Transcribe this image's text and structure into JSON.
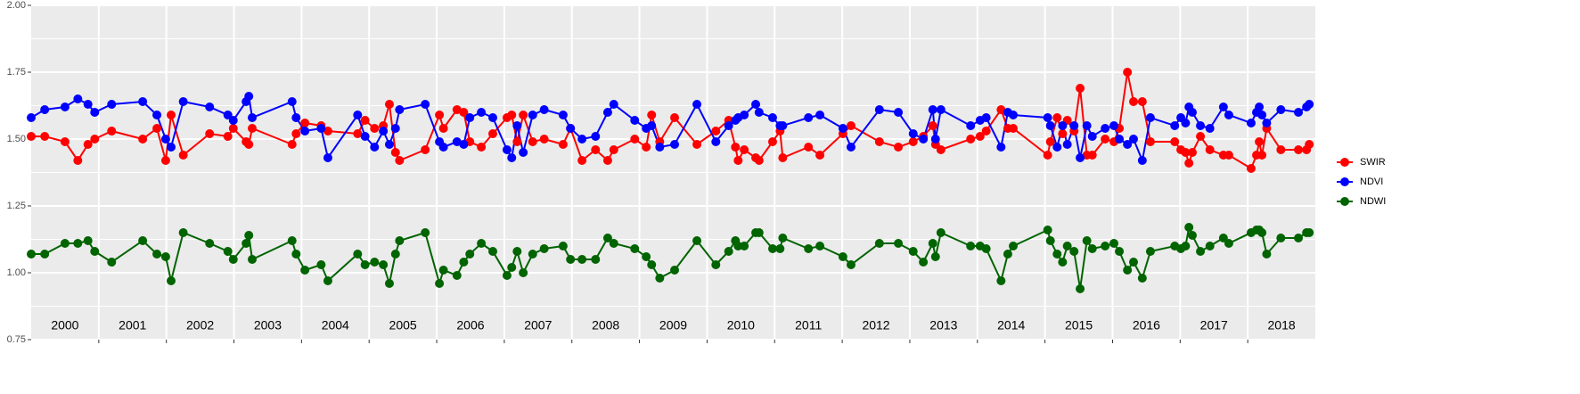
{
  "chart_data": {
    "type": "line",
    "x": [
      2000.0,
      2000.2,
      2000.5,
      2000.69,
      2000.84,
      2000.94,
      2001.19,
      2001.65,
      2001.86,
      2001.99,
      2002.07,
      2002.25,
      2002.64,
      2002.91,
      2002.99,
      2003.18,
      2003.22,
      2003.27,
      2003.86,
      2003.92,
      2004.05,
      2004.29,
      2004.39,
      2004.83,
      2004.94,
      2005.08,
      2005.21,
      2005.3,
      2005.39,
      2005.45,
      2005.83,
      2006.04,
      2006.1,
      2006.3,
      2006.4,
      2006.49,
      2006.66,
      2006.83,
      2007.04,
      2007.11,
      2007.19,
      2007.28,
      2007.42,
      2007.59,
      2007.87,
      2007.98,
      2008.15,
      2008.35,
      2008.53,
      2008.62,
      2008.93,
      2009.1,
      2009.18,
      2009.3,
      2009.52,
      2009.85,
      2010.13,
      2010.32,
      2010.42,
      2010.46,
      2010.55,
      2010.72,
      2010.77,
      2010.97,
      2011.08,
      2011.12,
      2011.5,
      2011.67,
      2012.01,
      2012.13,
      2012.55,
      2012.83,
      2013.05,
      2013.2,
      2013.34,
      2013.38,
      2013.46,
      2013.9,
      2014.04,
      2014.13,
      2014.35,
      2014.45,
      2014.53,
      2015.04,
      2015.08,
      2015.18,
      2015.26,
      2015.33,
      2015.43,
      2015.52,
      2015.62,
      2015.7,
      2015.89,
      2016.02,
      2016.1,
      2016.22,
      2016.31,
      2016.44,
      2016.56,
      2016.92,
      2017.01,
      2017.08,
      2017.13,
      2017.18,
      2017.3,
      2017.44,
      2017.64,
      2017.72,
      2018.05,
      2018.13,
      2018.17,
      2018.21,
      2018.28,
      2018.49,
      2018.75,
      2018.87,
      2018.91
    ],
    "series": [
      {
        "name": "SWIR",
        "color": "#ff0000",
        "values": [
          1.51,
          1.51,
          1.49,
          1.42,
          1.48,
          1.5,
          1.53,
          1.5,
          1.54,
          1.42,
          1.59,
          1.44,
          1.52,
          1.51,
          1.54,
          1.49,
          1.48,
          1.54,
          1.48,
          1.52,
          1.56,
          1.55,
          1.53,
          1.52,
          1.57,
          1.54,
          1.55,
          1.63,
          1.45,
          1.42,
          1.46,
          1.59,
          1.54,
          1.61,
          1.6,
          1.49,
          1.47,
          1.52,
          1.58,
          1.59,
          1.49,
          1.59,
          1.49,
          1.5,
          1.48,
          1.54,
          1.42,
          1.46,
          1.42,
          1.46,
          1.5,
          1.47,
          1.59,
          1.49,
          1.58,
          1.48,
          1.53,
          1.57,
          1.47,
          1.42,
          1.46,
          1.43,
          1.42,
          1.49,
          1.53,
          1.43,
          1.47,
          1.44,
          1.52,
          1.55,
          1.49,
          1.47,
          1.49,
          1.51,
          1.55,
          1.48,
          1.46,
          1.5,
          1.51,
          1.53,
          1.61,
          1.54,
          1.54,
          1.44,
          1.49,
          1.58,
          1.52,
          1.57,
          1.53,
          1.69,
          1.44,
          1.44,
          1.5,
          1.49,
          1.54,
          1.75,
          1.64,
          1.64,
          1.49,
          1.49,
          1.46,
          1.45,
          1.41,
          1.45,
          1.51,
          1.46,
          1.44,
          1.44,
          1.39,
          1.44,
          1.49,
          1.44,
          1.54,
          1.46,
          1.46,
          1.46,
          1.48
        ]
      },
      {
        "name": "NDVI",
        "color": "#0000ff",
        "values": [
          1.58,
          1.61,
          1.62,
          1.65,
          1.63,
          1.6,
          1.63,
          1.64,
          1.59,
          1.5,
          1.47,
          1.64,
          1.62,
          1.59,
          1.57,
          1.64,
          1.66,
          1.58,
          1.64,
          1.58,
          1.53,
          1.54,
          1.43,
          1.59,
          1.51,
          1.47,
          1.53,
          1.48,
          1.54,
          1.61,
          1.63,
          1.49,
          1.47,
          1.49,
          1.48,
          1.58,
          1.6,
          1.58,
          1.46,
          1.43,
          1.55,
          1.45,
          1.59,
          1.61,
          1.59,
          1.54,
          1.5,
          1.51,
          1.6,
          1.63,
          1.57,
          1.54,
          1.55,
          1.47,
          1.48,
          1.63,
          1.49,
          1.55,
          1.57,
          1.58,
          1.59,
          1.63,
          1.6,
          1.58,
          1.55,
          1.55,
          1.58,
          1.59,
          1.54,
          1.47,
          1.61,
          1.6,
          1.52,
          1.5,
          1.61,
          1.5,
          1.61,
          1.55,
          1.57,
          1.58,
          1.47,
          1.6,
          1.59,
          1.58,
          1.55,
          1.47,
          1.55,
          1.48,
          1.55,
          1.43,
          1.55,
          1.51,
          1.54,
          1.55,
          1.5,
          1.48,
          1.5,
          1.42,
          1.58,
          1.55,
          1.58,
          1.56,
          1.62,
          1.6,
          1.55,
          1.54,
          1.62,
          1.59,
          1.56,
          1.6,
          1.62,
          1.59,
          1.56,
          1.61,
          1.6,
          1.62,
          1.63
        ]
      },
      {
        "name": "NDWI",
        "color": "#006400",
        "values": [
          1.07,
          1.07,
          1.11,
          1.11,
          1.12,
          1.08,
          1.04,
          1.12,
          1.07,
          1.06,
          0.97,
          1.15,
          1.11,
          1.08,
          1.05,
          1.11,
          1.14,
          1.05,
          1.12,
          1.07,
          1.01,
          1.03,
          0.97,
          1.07,
          1.03,
          1.04,
          1.03,
          0.96,
          1.07,
          1.12,
          1.15,
          0.96,
          1.01,
          0.99,
          1.04,
          1.07,
          1.11,
          1.08,
          0.99,
          1.02,
          1.08,
          1.0,
          1.07,
          1.09,
          1.1,
          1.05,
          1.05,
          1.05,
          1.13,
          1.11,
          1.09,
          1.06,
          1.03,
          0.98,
          1.01,
          1.12,
          1.03,
          1.08,
          1.12,
          1.1,
          1.1,
          1.15,
          1.15,
          1.09,
          1.09,
          1.13,
          1.09,
          1.1,
          1.06,
          1.03,
          1.11,
          1.11,
          1.08,
          1.04,
          1.11,
          1.06,
          1.15,
          1.1,
          1.1,
          1.09,
          0.97,
          1.07,
          1.1,
          1.16,
          1.12,
          1.07,
          1.04,
          1.1,
          1.08,
          0.94,
          1.12,
          1.09,
          1.1,
          1.11,
          1.08,
          1.01,
          1.04,
          0.98,
          1.08,
          1.1,
          1.09,
          1.1,
          1.17,
          1.14,
          1.08,
          1.1,
          1.13,
          1.11,
          1.15,
          1.16,
          1.16,
          1.15,
          1.07,
          1.13,
          1.13,
          1.15,
          1.15
        ]
      }
    ],
    "xlim": [
      2000,
      2019
    ],
    "xticks": [
      2001,
      2002,
      2003,
      2004,
      2005,
      2006,
      2007,
      2008,
      2009,
      2010,
      2011,
      2012,
      2013,
      2014,
      2015,
      2016,
      2017,
      2018
    ],
    "year_labels": [
      {
        "value": 2000.5,
        "label": "2000"
      },
      {
        "value": 2001.5,
        "label": "2001"
      },
      {
        "value": 2002.5,
        "label": "2002"
      },
      {
        "value": 2003.5,
        "label": "2003"
      },
      {
        "value": 2004.5,
        "label": "2004"
      },
      {
        "value": 2005.5,
        "label": "2005"
      },
      {
        "value": 2006.5,
        "label": "2006"
      },
      {
        "value": 2007.5,
        "label": "2007"
      },
      {
        "value": 2008.5,
        "label": "2008"
      },
      {
        "value": 2009.5,
        "label": "2009"
      },
      {
        "value": 2010.5,
        "label": "2010"
      },
      {
        "value": 2011.5,
        "label": "2011"
      },
      {
        "value": 2012.5,
        "label": "2012"
      },
      {
        "value": 2013.5,
        "label": "2013"
      },
      {
        "value": 2014.5,
        "label": "2014"
      },
      {
        "value": 2015.5,
        "label": "2015"
      },
      {
        "value": 2016.5,
        "label": "2016"
      },
      {
        "value": 2017.5,
        "label": "2017"
      },
      {
        "value": 2018.5,
        "label": "2018"
      }
    ],
    "ylim": [
      0.75,
      2.0
    ],
    "yticks": [
      {
        "value": 0.75,
        "label": "0.75"
      },
      {
        "value": 1.0,
        "label": "1.00"
      },
      {
        "value": 1.25,
        "label": "1.25"
      },
      {
        "value": 1.5,
        "label": "1.50"
      },
      {
        "value": 1.75,
        "label": "1.75"
      },
      {
        "value": 2.0,
        "label": "2.00"
      }
    ],
    "grid": true,
    "legend": "right"
  }
}
